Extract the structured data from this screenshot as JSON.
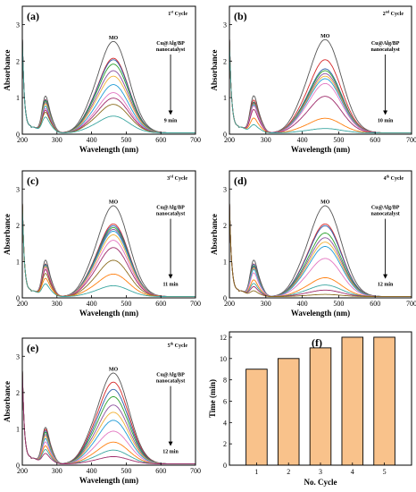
{
  "chart_data": [
    {
      "id": "a",
      "type": "line",
      "panel_label": "(a)",
      "cycle": {
        "num": "1",
        "sup": "st",
        "word": "Cycle"
      },
      "peak_label": "MO",
      "catalyst_label": [
        "Cu@Alg/BP",
        "nanocatalyst"
      ],
      "time_label": "9 min",
      "xlabel": "Wavelength (nm)",
      "ylabel": "Absorbance",
      "xlim": [
        200,
        700
      ],
      "ylim": [
        0,
        3.5
      ],
      "xticks": [
        200,
        300,
        400,
        500,
        600,
        700
      ],
      "yticks": [
        0,
        1,
        2,
        3
      ],
      "peak_heights": [
        2.5,
        2.04,
        2.0,
        1.88,
        1.7,
        1.55,
        1.32,
        1.1,
        0.95,
        0.78,
        0.46
      ],
      "series_colors": [
        "#555555",
        "#d62728",
        "#2a5caa",
        "#2ca02c",
        "#8b4f9e",
        "#f2b134",
        "#1f9bd6",
        "#e377c2",
        "#9e2a6a",
        "#8c6d1f",
        "#3aa6a0"
      ]
    },
    {
      "id": "b",
      "type": "line",
      "panel_label": "(b)",
      "cycle": {
        "num": "2",
        "sup": "nd",
        "word": "Cycle"
      },
      "peak_label": "MO",
      "catalyst_label": [
        "Cu@Alg/BP",
        "nanocatalyst"
      ],
      "time_label": "10 min",
      "xlabel": "Wavelength (nm)",
      "ylabel": "Absorbance",
      "xlim": [
        200,
        700
      ],
      "ylim": [
        0,
        3.5
      ],
      "xticks": [
        200,
        300,
        400,
        500,
        600,
        700
      ],
      "yticks": [
        0,
        1,
        2,
        3
      ],
      "peak_heights": [
        2.55,
        2.0,
        1.75,
        1.7,
        1.62,
        1.55,
        1.48,
        1.35,
        1.0,
        0.4,
        0.12
      ],
      "series_colors": [
        "#555555",
        "#d62728",
        "#2a5caa",
        "#2ca02c",
        "#8b4f9e",
        "#f2b134",
        "#1f9bd6",
        "#e377c2",
        "#9e2a6a",
        "#ff7f0e",
        "#3aa6a0"
      ]
    },
    {
      "id": "c",
      "type": "line",
      "panel_label": "(c)",
      "cycle": {
        "num": "3",
        "sup": "rd",
        "word": "Cycle"
      },
      "peak_label": "MO",
      "catalyst_label": [
        "Cu@Alg/BP",
        "nanocatalyst"
      ],
      "time_label": "11 min",
      "xlabel": "Wavelength (nm)",
      "ylabel": "Absorbance",
      "xlim": [
        200,
        700
      ],
      "ylim": [
        0,
        3.5
      ],
      "xticks": [
        200,
        300,
        400,
        500,
        600,
        700
      ],
      "yticks": [
        0,
        1,
        2,
        3
      ],
      "peak_heights": [
        2.5,
        2.0,
        1.95,
        1.9,
        1.85,
        1.8,
        1.7,
        1.55,
        1.35,
        1.0,
        0.62,
        0.3
      ],
      "series_colors": [
        "#555555",
        "#d62728",
        "#2a5caa",
        "#2ca02c",
        "#8b4f9e",
        "#1f9bd6",
        "#f2b134",
        "#e377c2",
        "#9e2a6a",
        "#8c6d1f",
        "#ff7f0e",
        "#3aa6a0"
      ]
    },
    {
      "id": "d",
      "type": "line",
      "panel_label": "(d)",
      "cycle": {
        "num": "4",
        "sup": "th",
        "word": "Cycle"
      },
      "peak_label": "MO",
      "catalyst_label": [
        "Cu@Alg/BP",
        "nanocatalyst"
      ],
      "time_label": "12 min",
      "xlabel": "Wavelength (nm)",
      "ylabel": "Absorbance",
      "xlim": [
        200,
        700
      ],
      "ylim": [
        0,
        3.5
      ],
      "xticks": [
        200,
        300,
        400,
        500,
        600,
        700
      ],
      "yticks": [
        0,
        1,
        2,
        3
      ],
      "peak_heights": [
        2.5,
        2.0,
        1.95,
        1.75,
        1.62,
        1.5,
        1.38,
        1.05,
        0.52,
        0.32,
        0.18,
        0.06
      ],
      "series_colors": [
        "#555555",
        "#d62728",
        "#2a5caa",
        "#2ca02c",
        "#8b4f9e",
        "#f2b134",
        "#1f9bd6",
        "#e377c2",
        "#ff7f0e",
        "#3aa6a0",
        "#9e2a6a",
        "#8c6d1f"
      ]
    },
    {
      "id": "e",
      "type": "line",
      "panel_label": "(e)",
      "cycle": {
        "num": "5",
        "sup": "th",
        "word": "Cycle"
      },
      "peak_label": "MO",
      "catalyst_label": [
        "Cu@Alg/BP",
        "nanocatalyst"
      ],
      "time_label": "12 min",
      "xlabel": "Wavelength (nm)",
      "ylabel": "Absorbance",
      "xlim": [
        200,
        700
      ],
      "ylim": [
        0,
        3.5
      ],
      "xticks": [
        200,
        300,
        400,
        500,
        600,
        700
      ],
      "yticks": [
        0,
        1,
        2,
        3
      ],
      "peak_heights": [
        2.5,
        2.25,
        2.05,
        1.85,
        1.62,
        1.42,
        1.2,
        0.9,
        0.6,
        0.38,
        0.2
      ],
      "series_colors": [
        "#555555",
        "#d62728",
        "#2a5caa",
        "#2ca02c",
        "#8b4f9e",
        "#f2b134",
        "#1f9bd6",
        "#e377c2",
        "#ff7f0e",
        "#3aa6a0",
        "#9e2a6a"
      ]
    },
    {
      "id": "f",
      "type": "bar",
      "panel_label": "(f)",
      "xlabel": "No. Cycle",
      "ylabel": "Time (min)",
      "categories": [
        "1",
        "2",
        "3",
        "4",
        "5"
      ],
      "values": [
        9,
        10,
        11,
        12,
        12
      ],
      "ylim": [
        0,
        12.5
      ],
      "yticks": [
        0,
        2,
        4,
        6,
        8,
        10,
        12
      ],
      "bar_color": "#f9c28b",
      "edge_color": "#000000"
    }
  ]
}
